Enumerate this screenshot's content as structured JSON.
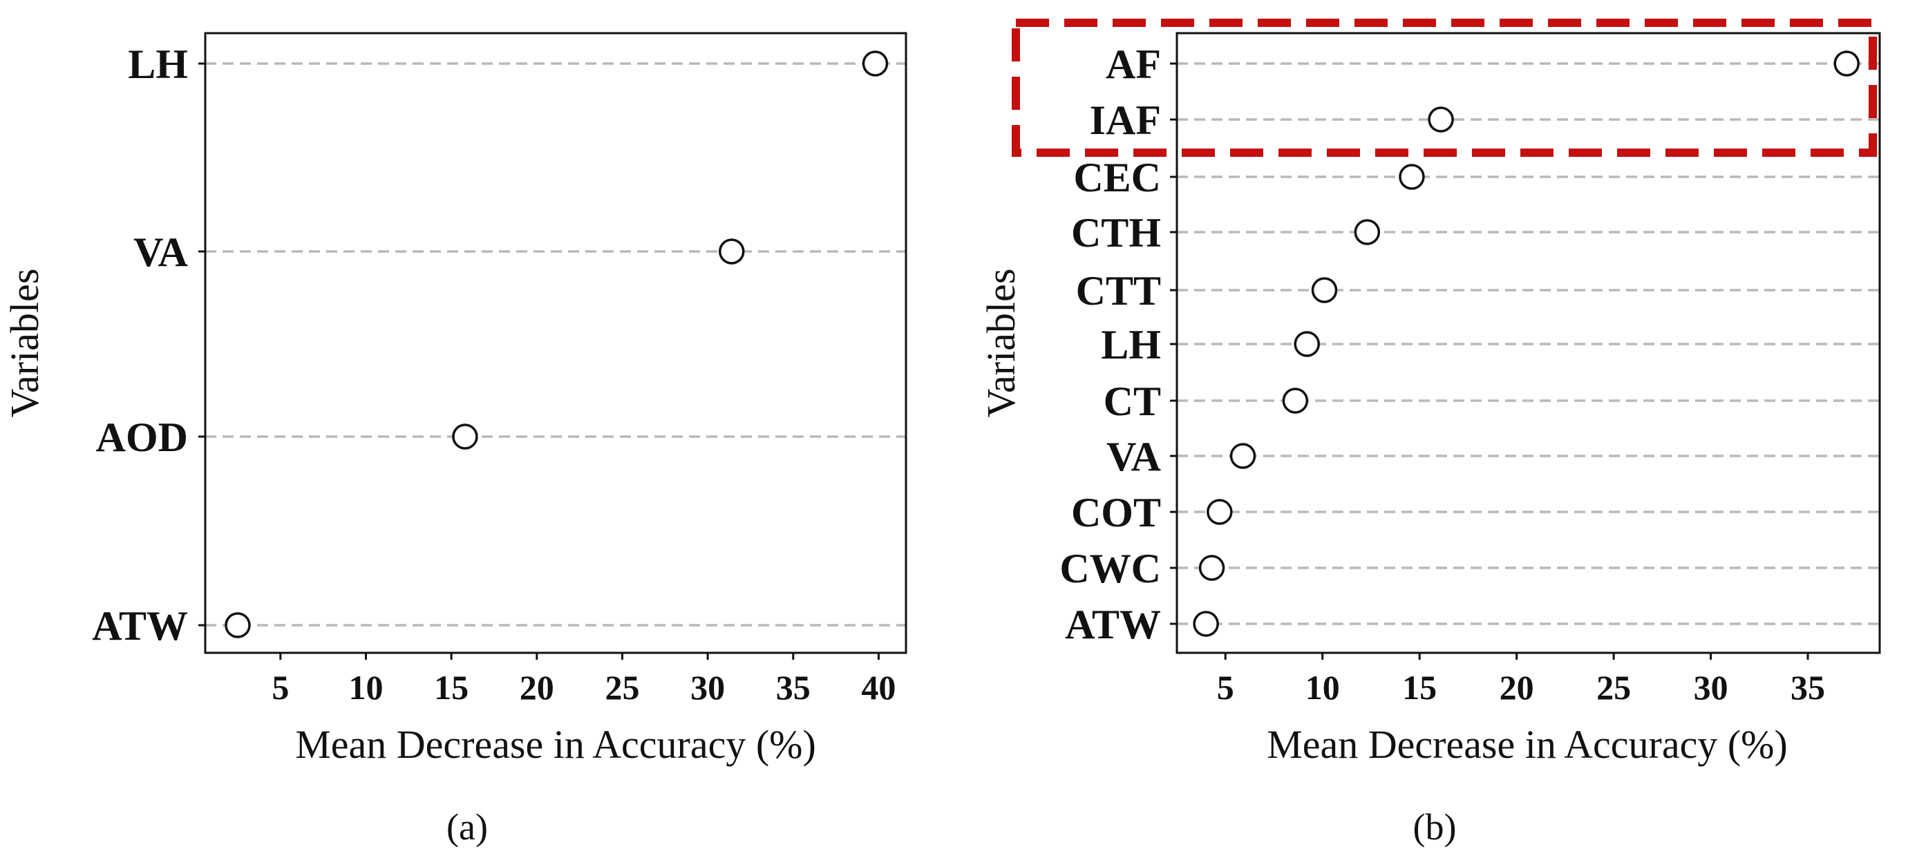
{
  "chart_data": [
    {
      "type": "scatter",
      "panel": "a",
      "caption": "(a)",
      "xlabel": "Mean Decrease in Accuracy (%)",
      "ylabel": "Variables",
      "xlim": [
        0.6,
        41.6
      ],
      "xticks": [
        5,
        10,
        15,
        20,
        25,
        30,
        35,
        40
      ],
      "categories": [
        "LH",
        "VA",
        "AOD",
        "ATW"
      ],
      "values": [
        39.8,
        31.4,
        15.8,
        2.5
      ],
      "grid": "horizontal dashed"
    },
    {
      "type": "scatter",
      "panel": "b",
      "caption": "(b)",
      "xlabel": "Mean Decrease in Accuracy (%)",
      "ylabel": "Variables",
      "xlim": [
        2.5,
        38.7
      ],
      "xticks": [
        5,
        10,
        15,
        20,
        25,
        30,
        35
      ],
      "categories": [
        "AF",
        "IAF",
        "CEC",
        "CTH",
        "CTT",
        "LH",
        "CT",
        "VA",
        "COT",
        "CWC",
        "ATW"
      ],
      "values": [
        37.0,
        16.1,
        14.6,
        12.3,
        10.1,
        9.2,
        8.6,
        5.9,
        4.7,
        4.3,
        4.0
      ],
      "grid": "horizontal dashed",
      "highlighted": [
        "AF",
        "IAF"
      ],
      "highlight_color": "#c41010"
    }
  ]
}
